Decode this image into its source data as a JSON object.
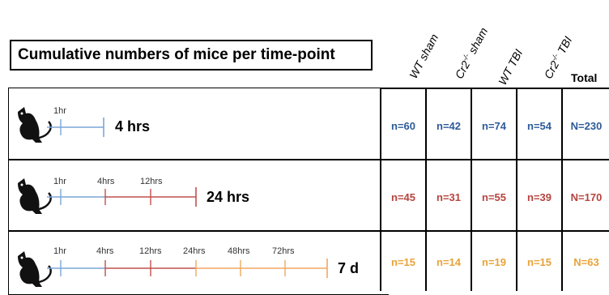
{
  "title": "Cumulative numbers of mice per time-point",
  "columns": [
    {
      "base": "WT sham",
      "sup": ""
    },
    {
      "base": "Cr2",
      "sup": "-/-",
      "tail": " sham"
    },
    {
      "base": "WT TBI",
      "sup": ""
    },
    {
      "base": "Cr2",
      "sup": "-/-",
      "tail": " TBI"
    }
  ],
  "total_label": "Total",
  "rows": [
    {
      "endpoint": "4 hrs",
      "ticks": [
        "1hr"
      ],
      "values": [
        "n=60",
        "n=42",
        "n=74",
        "n=54"
      ],
      "total": "N=230",
      "color": "#2e5b99"
    },
    {
      "endpoint": "24 hrs",
      "ticks": [
        "1hr",
        "4hrs",
        "12hrs"
      ],
      "values": [
        "n=45",
        "n=31",
        "n=55",
        "n=39"
      ],
      "total": "N=170",
      "color": "#b5443f"
    },
    {
      "endpoint": "7 d",
      "ticks": [
        "1hr",
        "4hrs",
        "12hrs",
        "24hrs",
        "48hrs",
        "72hrs"
      ],
      "values": [
        "n=15",
        "n=14",
        "n=19",
        "n=15"
      ],
      "total": "N=63",
      "color": "#e8a33a"
    }
  ],
  "timeline_colors": {
    "blue": "#7aa6d6",
    "red": "#c0504d",
    "orange": "#f0a860"
  }
}
